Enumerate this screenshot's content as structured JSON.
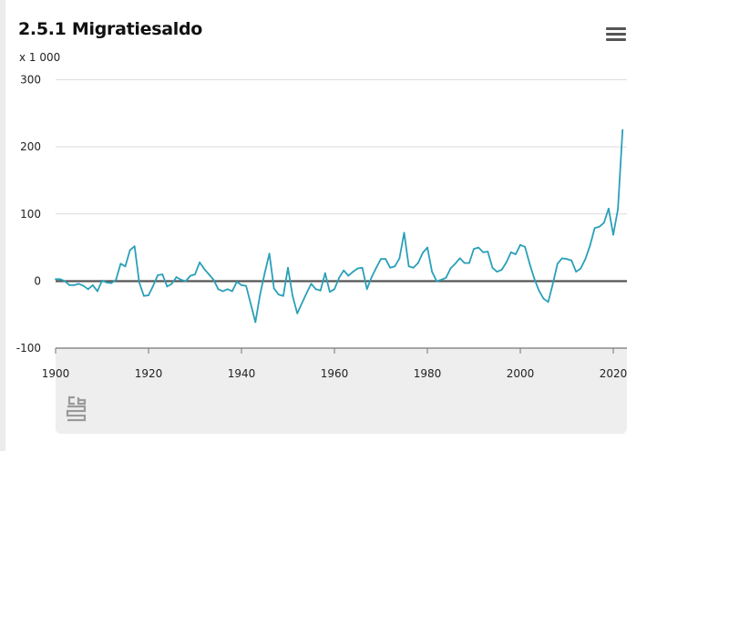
{
  "header": {
    "title": "2.5.1 Migratiesaldo",
    "menu_icon": "hamburger-menu-icon"
  },
  "footer": {
    "logo_icon": "cbs-logo-icon"
  },
  "colors": {
    "series": "#2aa0b9",
    "zero_line": "#555555",
    "grid": "#dcdcdc",
    "footer_bg": "#eeeeee"
  },
  "chart_data": {
    "type": "line",
    "title": "2.5.1 Migratiesaldo",
    "unit_label": "x 1 000",
    "xlabel": "",
    "ylabel": "",
    "xlim": [
      1900,
      2022
    ],
    "ylim": [
      -100,
      300
    ],
    "x_ticks": [
      "1900",
      "1920",
      "1940",
      "1960",
      "1980",
      "2000",
      "2020"
    ],
    "y_ticks": [
      "300",
      "200",
      "100",
      "0",
      "-100"
    ],
    "grid": true,
    "legend": "none",
    "series": [
      {
        "x": [
          1900,
          1901,
          1902,
          1903,
          1904,
          1905,
          1906,
          1907,
          1908,
          1909,
          1910,
          1911,
          1912,
          1913,
          1914,
          1915,
          1916,
          1917,
          1918,
          1919,
          1920,
          1921,
          1922,
          1923,
          1924,
          1925,
          1926,
          1927,
          1928,
          1929,
          1930,
          1931,
          1932,
          1933,
          1934,
          1935,
          1936,
          1937,
          1938,
          1939,
          1940,
          1941,
          1942,
          1943,
          1944,
          1945,
          1946,
          1947,
          1948,
          1949,
          1950,
          1951,
          1952,
          1953,
          1954,
          1955,
          1956,
          1957,
          1958,
          1959,
          1960,
          1961,
          1962,
          1963,
          1964,
          1965,
          1966,
          1967,
          1968,
          1969,
          1970,
          1971,
          1972,
          1973,
          1974,
          1975,
          1976,
          1977,
          1978,
          1979,
          1980,
          1981,
          1982,
          1983,
          1984,
          1985,
          1986,
          1987,
          1988,
          1989,
          1990,
          1991,
          1992,
          1993,
          1994,
          1995,
          1996,
          1997,
          1998,
          1999,
          2000,
          2001,
          2002,
          2003,
          2004,
          2005,
          2006,
          2007,
          2008,
          2009,
          2010,
          2011,
          2012,
          2013,
          2014,
          2015,
          2016,
          2017,
          2018,
          2019,
          2020,
          2021,
          2022
        ],
        "values": [
          3,
          3,
          0,
          -6,
          -6,
          -4,
          -7,
          -12,
          -6,
          -15,
          1,
          -2,
          -3,
          2,
          26,
          22,
          46,
          52,
          -2,
          -22,
          -21,
          -7,
          9,
          10,
          -8,
          -4,
          6,
          2,
          0,
          8,
          10,
          28,
          18,
          10,
          2,
          -12,
          -15,
          -12,
          -15,
          -1,
          -6,
          -7,
          -34,
          -61,
          -20,
          12,
          41,
          -11,
          -20,
          -22,
          20,
          -22,
          -48,
          -33,
          -18,
          -4,
          -12,
          -14,
          12,
          -16,
          -12,
          5,
          16,
          8,
          14,
          19,
          20,
          -12,
          6,
          20,
          33,
          33,
          20,
          22,
          34,
          72,
          22,
          20,
          27,
          42,
          50,
          14,
          0,
          2,
          5,
          19,
          26,
          34,
          27,
          27,
          48,
          50,
          43,
          44,
          20,
          14,
          17,
          28,
          43,
          40,
          54,
          51,
          26,
          4,
          -14,
          -26,
          -31,
          -4,
          26,
          34,
          33,
          31,
          14,
          19,
          33,
          53,
          79,
          81,
          87,
          108,
          69,
          107,
          225
        ]
      }
    ]
  }
}
